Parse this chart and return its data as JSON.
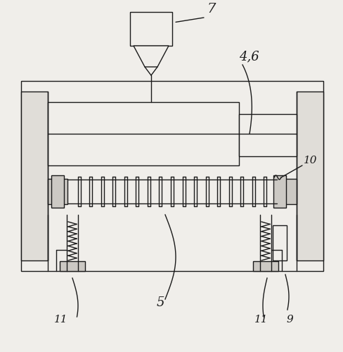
{
  "bg_color": "#f0eeea",
  "line_color": "#1a1a1a",
  "figsize": [
    4.89,
    5.0
  ],
  "dpi": 100
}
